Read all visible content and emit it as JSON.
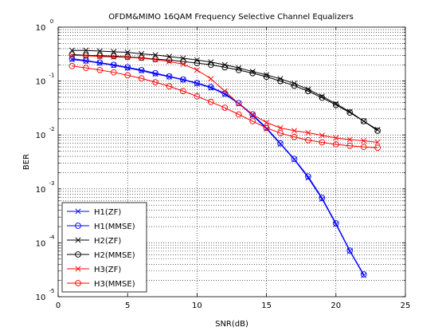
{
  "chart_data": {
    "type": "line",
    "title": "OFDM&MIMO 16QAM Frequency Selective Channel Equalizers",
    "xlabel": "SNR(dB)",
    "ylabel": "BER",
    "xlim": [
      0,
      25
    ],
    "ylim": [
      1e-05,
      1
    ],
    "yscale": "log",
    "grid": "dotted",
    "legend_position": "bottom-left",
    "x_ticks": [
      {
        "value": 0,
        "label": "0"
      },
      {
        "value": 5,
        "label": "5"
      },
      {
        "value": 10,
        "label": "10"
      },
      {
        "value": 15,
        "label": "15"
      },
      {
        "value": 20,
        "label": "20"
      },
      {
        "value": 25,
        "label": "25"
      }
    ],
    "y_ticks": [
      {
        "value": 1,
        "base": "10",
        "exp": "0"
      },
      {
        "value": 0.1,
        "base": "10",
        "exp": "-1"
      },
      {
        "value": 0.01,
        "base": "10",
        "exp": "-2"
      },
      {
        "value": 0.001,
        "base": "10",
        "exp": "-3"
      },
      {
        "value": 0.0001,
        "base": "10",
        "exp": "-4"
      },
      {
        "value": 1e-05,
        "base": "10",
        "exp": "-5"
      }
    ],
    "series": [
      {
        "name": "H1(ZF)",
        "color": "#0000ff",
        "marker": "x",
        "x": [
          1,
          2,
          3,
          4,
          5,
          6,
          7,
          8,
          9,
          10,
          11,
          12,
          13,
          14,
          15,
          16,
          17,
          18,
          19,
          20,
          21,
          22
        ],
        "y": [
          0.25,
          0.235,
          0.215,
          0.195,
          0.175,
          0.155,
          0.135,
          0.12,
          0.105,
          0.09,
          0.075,
          0.057,
          0.038,
          0.023,
          0.013,
          0.0068,
          0.0035,
          0.0016,
          0.00065,
          0.00022,
          7e-05,
          2.5e-05
        ]
      },
      {
        "name": "H1(MMSE)",
        "color": "#0000ff",
        "marker": "o",
        "x": [
          1,
          2,
          3,
          4,
          5,
          6,
          7,
          8,
          9,
          10,
          11,
          12,
          13,
          14,
          15,
          16,
          17,
          18,
          19,
          20,
          21,
          22
        ],
        "y": [
          0.26,
          0.24,
          0.22,
          0.2,
          0.18,
          0.16,
          0.14,
          0.122,
          0.107,
          0.092,
          0.077,
          0.059,
          0.039,
          0.024,
          0.0135,
          0.007,
          0.0036,
          0.0017,
          0.00068,
          0.00023,
          7.2e-05,
          2.6e-05
        ]
      },
      {
        "name": "H2(ZF)",
        "color": "#000000",
        "marker": "x",
        "x": [
          1,
          2,
          3,
          4,
          5,
          6,
          7,
          8,
          9,
          10,
          11,
          12,
          13,
          14,
          15,
          16,
          17,
          18,
          19,
          20,
          21,
          22,
          23
        ],
        "y": [
          0.37,
          0.37,
          0.36,
          0.35,
          0.34,
          0.32,
          0.305,
          0.285,
          0.265,
          0.245,
          0.225,
          0.2,
          0.175,
          0.15,
          0.13,
          0.11,
          0.09,
          0.07,
          0.052,
          0.038,
          0.027,
          0.018,
          0.0125
        ]
      },
      {
        "name": "H2(MMSE)",
        "color": "#000000",
        "marker": "o",
        "x": [
          1,
          2,
          3,
          4,
          5,
          6,
          7,
          8,
          9,
          10,
          11,
          12,
          13,
          14,
          15,
          16,
          17,
          18,
          19,
          20,
          21,
          22,
          23
        ],
        "y": [
          0.31,
          0.3,
          0.295,
          0.29,
          0.28,
          0.27,
          0.255,
          0.245,
          0.23,
          0.215,
          0.2,
          0.18,
          0.16,
          0.14,
          0.12,
          0.1,
          0.082,
          0.065,
          0.049,
          0.036,
          0.026,
          0.018,
          0.012
        ]
      },
      {
        "name": "H3(ZF)",
        "color": "#ff0000",
        "marker": "x",
        "x": [
          1,
          2,
          3,
          4,
          5,
          6,
          7,
          8,
          9,
          10,
          11,
          12,
          13,
          14,
          15,
          16,
          17,
          18,
          19,
          20,
          21,
          22,
          23
        ],
        "y": [
          0.3,
          0.295,
          0.285,
          0.28,
          0.275,
          0.265,
          0.25,
          0.23,
          0.205,
          0.16,
          0.11,
          0.065,
          0.038,
          0.024,
          0.017,
          0.0135,
          0.012,
          0.011,
          0.0098,
          0.0088,
          0.0082,
          0.0078,
          0.0073
        ]
      },
      {
        "name": "H3(MMSE)",
        "color": "#ff0000",
        "marker": "o",
        "x": [
          1,
          2,
          3,
          4,
          5,
          6,
          7,
          8,
          9,
          10,
          11,
          12,
          13,
          14,
          15,
          16,
          17,
          18,
          19,
          20,
          21,
          22,
          23
        ],
        "y": [
          0.19,
          0.175,
          0.16,
          0.145,
          0.128,
          0.112,
          0.095,
          0.08,
          0.065,
          0.052,
          0.041,
          0.032,
          0.024,
          0.018,
          0.0135,
          0.0108,
          0.0092,
          0.008,
          0.0073,
          0.0067,
          0.0063,
          0.006,
          0.0058
        ]
      }
    ]
  }
}
